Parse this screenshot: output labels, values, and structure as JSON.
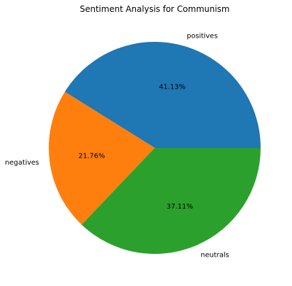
{
  "chart_data": {
    "type": "pie",
    "title": "Sentiment Analysis for Communism",
    "slices": [
      {
        "label": "positives",
        "value": 41.13,
        "pct_text": "41.13%",
        "color": "#1f77b4"
      },
      {
        "label": "negatives",
        "value": 21.76,
        "pct_text": "21.76%",
        "color": "#ff7f0e"
      },
      {
        "label": "neutrals",
        "value": 37.11,
        "pct_text": "37.11%",
        "color": "#2ca02c"
      }
    ],
    "legend": "none"
  }
}
